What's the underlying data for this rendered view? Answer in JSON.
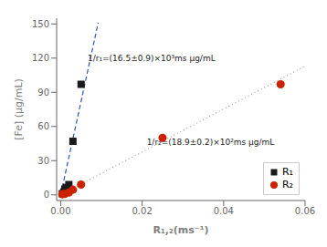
{
  "chart_data": {
    "type": "scatter",
    "xlabel": "R₁,₂(ms⁻¹)",
    "ylabel": "[Fe] (μg/mL)",
    "xlim": [
      -0.001,
      0.06
    ],
    "ylim": [
      -5,
      155
    ],
    "xticks": [
      {
        "value": 0.0,
        "label": "0.00"
      },
      0.02,
      0.04,
      0.06
    ],
    "yticks": [
      0,
      30,
      60,
      90,
      120,
      150
    ],
    "grid": false,
    "legend": "lower right",
    "series": [
      {
        "type": "line",
        "line_style": "dashed",
        "color": "#3355bb",
        "x": [
          0.0,
          0.0092
        ],
        "values": [
          0.0,
          151.0
        ]
      },
      {
        "type": "line",
        "line_style": "dotted",
        "color": "#aaaaaa",
        "x": [
          0.0,
          0.06
        ],
        "values": [
          0.0,
          113.0
        ]
      },
      {
        "name": "R₁",
        "type": "scatter",
        "marker": "square",
        "color": "#1a1a1a",
        "x": [
          0.0004,
          0.0008,
          0.001,
          0.0014,
          0.002,
          0.003,
          0.005
        ],
        "values": [
          1.0,
          2.5,
          5.0,
          6.5,
          9.0,
          47.0,
          97.0
        ]
      },
      {
        "name": "R₂",
        "type": "scatter",
        "marker": "circle",
        "color": "#cc2200",
        "x": [
          0.0004,
          0.001,
          0.002,
          0.003,
          0.005,
          0.025,
          0.054
        ],
        "values": [
          0.5,
          0.8,
          2.0,
          4.5,
          9.0,
          50.0,
          97.0
        ]
      }
    ],
    "annotations": [
      {
        "text": "1/r₁=(16.5±0.9)×10³ms μg/mL",
        "x": 0.0055,
        "y": 120
      },
      {
        "text": "1/r₂=(18.9±0.2)×10²ms μg/mL",
        "x": 0.02,
        "y": 46
      }
    ]
  }
}
